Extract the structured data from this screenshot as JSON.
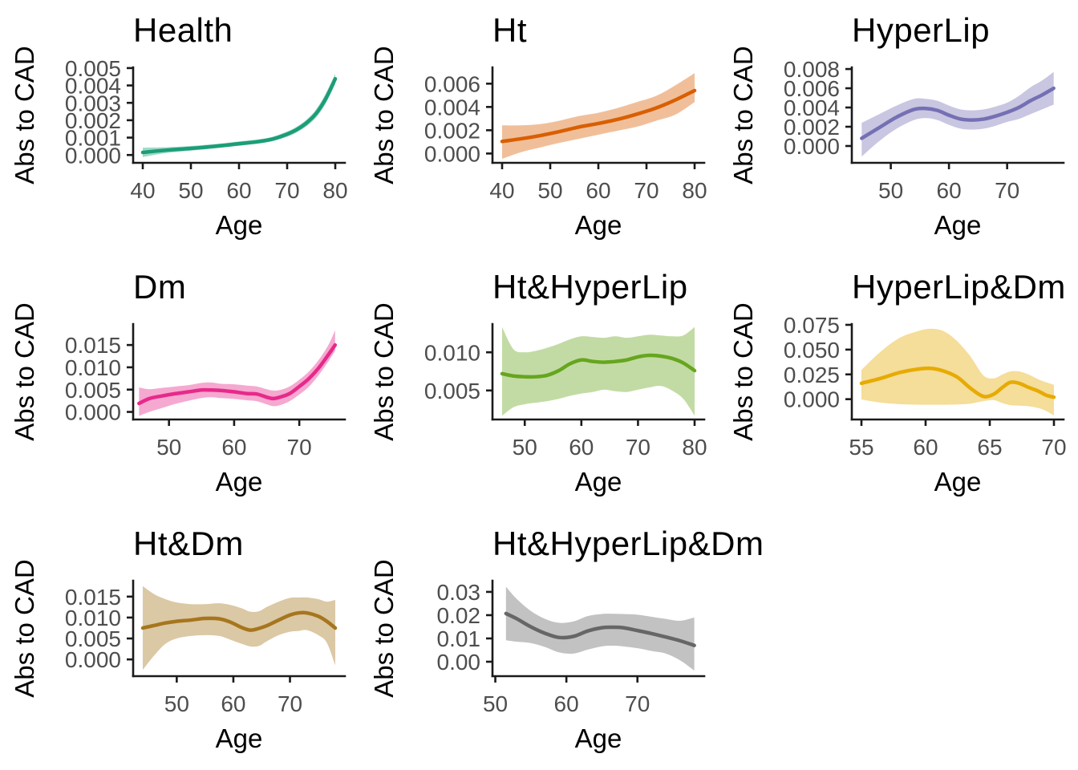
{
  "figure": {
    "background": "#FFFFFF",
    "axis_text_color": "#4D4D4D",
    "axis_line_color": "#1A1A1A",
    "title_color": "#000000",
    "band_opacity": 0.4
  },
  "chart_data": [
    {
      "type": "line",
      "title": "Health",
      "xlabel": "Age",
      "ylabel": "Abs to CAD",
      "color": "#1B9E77",
      "legend": "none",
      "grid": "off",
      "xlim": [
        38,
        82
      ],
      "ylim": [
        -0.00045,
        0.00504
      ],
      "xticks": [
        40,
        50,
        60,
        70,
        80
      ],
      "ytick_values": [
        0.0,
        0.001,
        0.002,
        0.003,
        0.004,
        0.005
      ],
      "ytick_labels": [
        "0.000",
        "0.001",
        "0.002",
        "0.003",
        "0.004",
        "0.005"
      ],
      "x": [
        40,
        45,
        50,
        55,
        60,
        64,
        67,
        70,
        72,
        74,
        76,
        78,
        80
      ],
      "y": [
        0.00015,
        0.00028,
        0.00038,
        0.0005,
        0.00065,
        0.00077,
        0.00092,
        0.0012,
        0.00146,
        0.00184,
        0.00238,
        0.00323,
        0.00438
      ],
      "lo": [
        -0.00012,
        0.00012,
        0.00025,
        0.00038,
        0.00053,
        0.00065,
        0.0008,
        0.00105,
        0.0013,
        0.00165,
        0.00215,
        0.00295,
        0.00408
      ],
      "hi": [
        0.00042,
        0.00045,
        0.00052,
        0.00063,
        0.00078,
        0.0009,
        0.00105,
        0.00135,
        0.00163,
        0.00203,
        0.00262,
        0.00352,
        0.00468
      ]
    },
    {
      "type": "line",
      "title": "Ht",
      "xlabel": "Age",
      "ylabel": "Abs to CAD",
      "color": "#D95F02",
      "legend": "none",
      "grid": "off",
      "xlim": [
        38,
        82
      ],
      "ylim": [
        -0.0008,
        0.0074
      ],
      "xticks": [
        40,
        50,
        60,
        70,
        80
      ],
      "ytick_values": [
        0.0,
        0.002,
        0.004,
        0.006
      ],
      "ytick_labels": [
        "0.000",
        "0.002",
        "0.004",
        "0.006"
      ],
      "x": [
        40,
        44,
        48,
        52,
        56,
        60,
        64,
        68,
        72,
        76,
        80
      ],
      "y": [
        0.00104,
        0.00127,
        0.00155,
        0.00189,
        0.00228,
        0.00258,
        0.00293,
        0.00338,
        0.00391,
        0.0046,
        0.00541
      ],
      "lo": [
        -0.00046,
        0.00012,
        0.00053,
        0.00092,
        0.00127,
        0.00161,
        0.00196,
        0.0023,
        0.00281,
        0.00334,
        0.00442
      ],
      "hi": [
        0.00242,
        0.00242,
        0.00253,
        0.00283,
        0.00322,
        0.0035,
        0.00391,
        0.00442,
        0.00495,
        0.00586,
        0.0069
      ]
    },
    {
      "type": "line",
      "title": "HyperLip",
      "xlabel": "Age",
      "ylabel": "Abs to CAD",
      "color": "#7570B3",
      "legend": "none",
      "grid": "off",
      "xlim": [
        43.3,
        79.7
      ],
      "ylim": [
        -0.00175,
        0.00817
      ],
      "xticks": [
        50,
        60,
        70
      ],
      "ytick_values": [
        0.0,
        0.002,
        0.004,
        0.006,
        0.008
      ],
      "ytick_labels": [
        "0.000",
        "0.002",
        "0.004",
        "0.006",
        "0.008"
      ],
      "x": [
        45,
        48,
        51,
        54,
        56,
        58,
        60,
        62,
        64,
        66,
        68,
        70,
        72,
        74,
        76,
        78
      ],
      "y": [
        0.0008,
        0.0019,
        0.003,
        0.0038,
        0.0039,
        0.0037,
        0.0032,
        0.0028,
        0.0027,
        0.0028,
        0.0031,
        0.0035,
        0.004,
        0.0047,
        0.0053,
        0.006
      ],
      "lo": [
        -0.0011,
        0.0005,
        0.0018,
        0.0027,
        0.0029,
        0.0027,
        0.0022,
        0.0018,
        0.0017,
        0.0018,
        0.0021,
        0.0025,
        0.0028,
        0.0033,
        0.0038,
        0.0043
      ],
      "hi": [
        0.0024,
        0.0033,
        0.0042,
        0.0049,
        0.0049,
        0.0047,
        0.0042,
        0.0038,
        0.0037,
        0.0038,
        0.0041,
        0.0045,
        0.0052,
        0.0061,
        0.0068,
        0.0077
      ]
    },
    {
      "type": "line",
      "title": "Dm",
      "xlabel": "Age",
      "ylabel": "Abs to CAD",
      "color": "#E7298A",
      "legend": "none",
      "grid": "off",
      "xlim": [
        44.5,
        77
      ],
      "ylim": [
        -0.0017,
        0.0197
      ],
      "xticks": [
        50,
        60,
        70
      ],
      "ytick_values": [
        0.0,
        0.005,
        0.01,
        0.015
      ],
      "ytick_labels": [
        "0.000",
        "0.005",
        "0.010",
        "0.015"
      ],
      "x": [
        45.4,
        47,
        49,
        51,
        53,
        55,
        56.5,
        58,
        60,
        62,
        63.5,
        65,
        66,
        67,
        68.5,
        70,
        71.5,
        73,
        74.5,
        75.5
      ],
      "y": [
        0.0019,
        0.003,
        0.0036,
        0.0041,
        0.0045,
        0.0049,
        0.0049,
        0.0048,
        0.0045,
        0.0041,
        0.004,
        0.0033,
        0.003,
        0.0033,
        0.0041,
        0.0057,
        0.0075,
        0.0099,
        0.0129,
        0.015
      ],
      "lo": [
        -0.0009,
        0.0,
        0.0009,
        0.0018,
        0.0025,
        0.0031,
        0.0033,
        0.0031,
        0.0029,
        0.0026,
        0.0024,
        0.0017,
        0.0013,
        0.0015,
        0.0024,
        0.0039,
        0.0057,
        0.0083,
        0.0114,
        0.0137
      ],
      "hi": [
        0.0055,
        0.0051,
        0.0054,
        0.0057,
        0.006,
        0.0065,
        0.0066,
        0.0063,
        0.0062,
        0.0059,
        0.0057,
        0.0051,
        0.0048,
        0.0049,
        0.0057,
        0.0072,
        0.0091,
        0.0117,
        0.0151,
        0.0183
      ]
    },
    {
      "type": "line",
      "title": "Ht&HyperLip",
      "xlabel": "Age",
      "ylabel": "Abs to CAD",
      "color": "#66A61E",
      "legend": "none",
      "grid": "off",
      "xlim": [
        44.3,
        81.7
      ],
      "ylim": [
        0.0012,
        0.0137
      ],
      "xticks": [
        50,
        60,
        70,
        80
      ],
      "ytick_values": [
        0.005,
        0.01
      ],
      "ytick_labels": [
        "0.005",
        "0.010"
      ],
      "x": [
        46,
        48,
        50,
        52,
        54,
        56,
        58,
        60,
        62,
        64,
        66,
        68,
        70,
        72,
        74,
        76,
        78,
        80
      ],
      "y": [
        0.0072,
        0.0069,
        0.0068,
        0.0068,
        0.007,
        0.0076,
        0.0085,
        0.009,
        0.0088,
        0.0087,
        0.0088,
        0.009,
        0.0094,
        0.0096,
        0.0095,
        0.0092,
        0.0086,
        0.0076
      ],
      "lo": [
        0.0017,
        0.0028,
        0.0032,
        0.0034,
        0.0036,
        0.0039,
        0.0043,
        0.0046,
        0.0048,
        0.0051,
        0.0049,
        0.0048,
        0.0051,
        0.0054,
        0.0056,
        0.005,
        0.0039,
        0.0017
      ],
      "hi": [
        0.0133,
        0.0104,
        0.01,
        0.0102,
        0.0106,
        0.0111,
        0.0117,
        0.0121,
        0.012,
        0.0119,
        0.0121,
        0.0119,
        0.0121,
        0.0123,
        0.0122,
        0.0121,
        0.0122,
        0.0133
      ]
    },
    {
      "type": "line",
      "title": "HyperLip&Dm",
      "xlabel": "Age",
      "ylabel": "Abs to CAD",
      "color": "#E6AB02",
      "legend": "none",
      "grid": "off",
      "xlim": [
        54.25,
        70.75
      ],
      "ylim": [
        -0.0205,
        0.0758
      ],
      "xticks": [
        55,
        60,
        65,
        70
      ],
      "ytick_values": [
        0.0,
        0.025,
        0.05,
        0.075
      ],
      "ytick_labels": [
        "0.000",
        "0.025",
        "0.050",
        "0.075"
      ],
      "x": [
        55,
        56.5,
        58,
        59.5,
        60.5,
        61.5,
        62.5,
        63.5,
        64.5,
        65.3,
        66,
        66.6,
        67.3,
        68,
        68.8,
        69.4,
        70
      ],
      "y": [
        0.016,
        0.021,
        0.027,
        0.0305,
        0.031,
        0.028,
        0.022,
        0.011,
        0.0028,
        0.005,
        0.012,
        0.017,
        0.016,
        0.012,
        0.008,
        0.004,
        0.002
      ],
      "lo": [
        -0.0003,
        -0.0035,
        -0.005,
        -0.0056,
        -0.0056,
        -0.0056,
        -0.0053,
        -0.0045,
        -0.002,
        -0.001,
        -0.004,
        -0.006,
        -0.0065,
        -0.007,
        -0.009,
        -0.012,
        -0.0164
      ],
      "hi": [
        0.0295,
        0.048,
        0.062,
        0.069,
        0.071,
        0.068,
        0.058,
        0.043,
        0.024,
        0.021,
        0.025,
        0.028,
        0.028,
        0.025,
        0.02,
        0.017,
        0.0145
      ]
    },
    {
      "type": "line",
      "title": "Ht&Dm",
      "xlabel": "Age",
      "ylabel": "Abs to CAD",
      "color": "#A6761D",
      "legend": "none",
      "grid": "off",
      "xlim": [
        42.3,
        79.7
      ],
      "ylim": [
        -0.004,
        0.0188
      ],
      "xticks": [
        50,
        60,
        70
      ],
      "ytick_values": [
        0.0,
        0.005,
        0.01,
        0.015
      ],
      "ytick_labels": [
        "0.000",
        "0.005",
        "0.010",
        "0.015"
      ],
      "x": [
        44,
        46,
        48,
        50,
        52.5,
        55,
        57.5,
        59.5,
        61.5,
        63,
        64.5,
        66,
        68,
        70,
        71.5,
        73,
        75,
        76.5,
        78
      ],
      "y": [
        0.0075,
        0.0081,
        0.0087,
        0.0091,
        0.0094,
        0.0098,
        0.0097,
        0.0089,
        0.0076,
        0.007,
        0.0074,
        0.0081,
        0.0094,
        0.0106,
        0.0111,
        0.0111,
        0.0103,
        0.0091,
        0.0075
      ],
      "lo": [
        -0.0025,
        0.0009,
        0.0037,
        0.005,
        0.0056,
        0.0058,
        0.0056,
        0.0047,
        0.0037,
        0.0031,
        0.0032,
        0.0044,
        0.0058,
        0.0066,
        0.0068,
        0.007,
        0.0058,
        0.004,
        -0.0014
      ],
      "hi": [
        0.0175,
        0.0156,
        0.0144,
        0.0136,
        0.0132,
        0.0132,
        0.0134,
        0.013,
        0.0122,
        0.0114,
        0.0115,
        0.0126,
        0.0138,
        0.0147,
        0.0148,
        0.0148,
        0.0144,
        0.0138,
        0.0142
      ]
    },
    {
      "type": "line",
      "title": "Ht&HyperLip&Dm",
      "xlabel": "Age",
      "ylabel": "Abs to CAD",
      "color": "#666666",
      "legend": "none",
      "grid": "off",
      "xlim": [
        49.6,
        79.4
      ],
      "ylim": [
        -0.0062,
        0.0348
      ],
      "xticks": [
        50,
        60,
        70
      ],
      "ytick_values": [
        0.0,
        0.01,
        0.02,
        0.03
      ],
      "ytick_labels": [
        "0.00",
        "0.01",
        "0.02",
        "0.03"
      ],
      "x": [
        51.5,
        53,
        55,
        57,
        59,
        61,
        63,
        65,
        66.5,
        68,
        70,
        72,
        74,
        76,
        78
      ],
      "y": [
        0.0207,
        0.0185,
        0.015,
        0.0122,
        0.0104,
        0.0109,
        0.0132,
        0.0146,
        0.0148,
        0.0146,
        0.0134,
        0.0121,
        0.0106,
        0.009,
        0.007
      ],
      "lo": [
        0.0092,
        0.0086,
        0.008,
        0.0063,
        0.004,
        0.0035,
        0.0052,
        0.0066,
        0.0069,
        0.0066,
        0.0058,
        0.0046,
        0.0035,
        0.0006,
        -0.0038
      ],
      "hi": [
        0.0322,
        0.027,
        0.0218,
        0.0184,
        0.0167,
        0.0173,
        0.0196,
        0.0205,
        0.0206,
        0.0205,
        0.0202,
        0.0193,
        0.0184,
        0.0176,
        0.019
      ]
    }
  ]
}
